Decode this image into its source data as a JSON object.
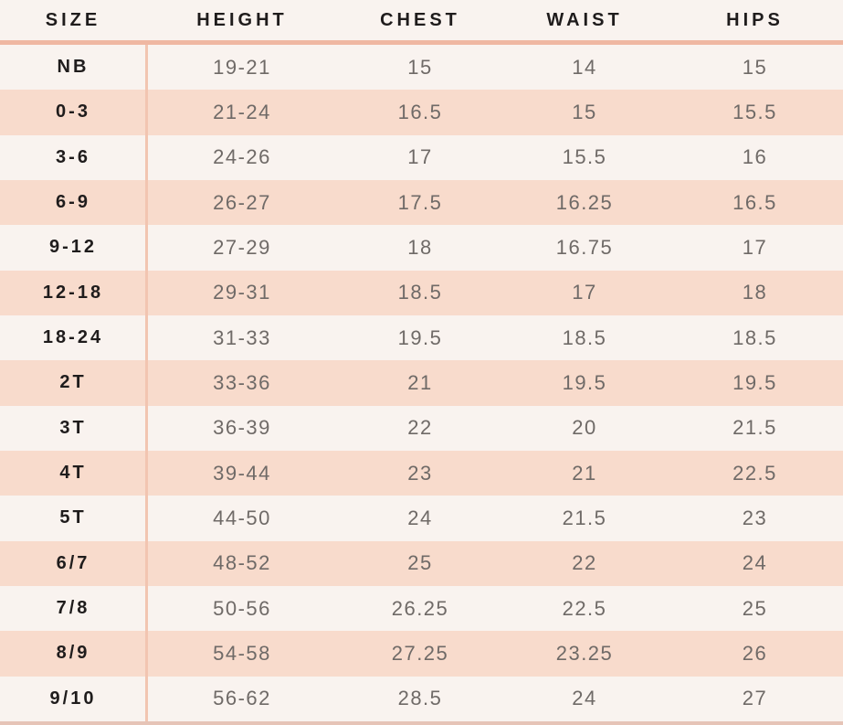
{
  "colors": {
    "background_light": "#f9f3ef",
    "row_pink": "#f8dbcc",
    "header_divider": "#efb7a2",
    "column_divider": "#f2c5b1",
    "bottom_edge": "#e6c4b7",
    "header_text": "#1f1c1c",
    "size_text": "#1f1c1c",
    "value_text": "#6f6a67"
  },
  "chart_data": {
    "type": "table",
    "columns": [
      "SIZE",
      "HEIGHT",
      "CHEST",
      "WAIST",
      "HIPS"
    ],
    "rows": [
      [
        "NB",
        "19-21",
        "15",
        "14",
        "15"
      ],
      [
        "0-3",
        "21-24",
        "16.5",
        "15",
        "15.5"
      ],
      [
        "3-6",
        "24-26",
        "17",
        "15.5",
        "16"
      ],
      [
        "6-9",
        "26-27",
        "17.5",
        "16.25",
        "16.5"
      ],
      [
        "9-12",
        "27-29",
        "18",
        "16.75",
        "17"
      ],
      [
        "12-18",
        "29-31",
        "18.5",
        "17",
        "18"
      ],
      [
        "18-24",
        "31-33",
        "19.5",
        "18.5",
        "18.5"
      ],
      [
        "2T",
        "33-36",
        "21",
        "19.5",
        "19.5"
      ],
      [
        "3T",
        "36-39",
        "22",
        "20",
        "21.5"
      ],
      [
        "4T",
        "39-44",
        "23",
        "21",
        "22.5"
      ],
      [
        "5T",
        "44-50",
        "24",
        "21.5",
        "23"
      ],
      [
        "6/7",
        "48-52",
        "25",
        "22",
        "24"
      ],
      [
        "7/8",
        "50-56",
        "26.25",
        "22.5",
        "25"
      ],
      [
        "8/9",
        "54-58",
        "27.25",
        "23.25",
        "26"
      ],
      [
        "9/10",
        "56-62",
        "28.5",
        "24",
        "27"
      ]
    ]
  }
}
